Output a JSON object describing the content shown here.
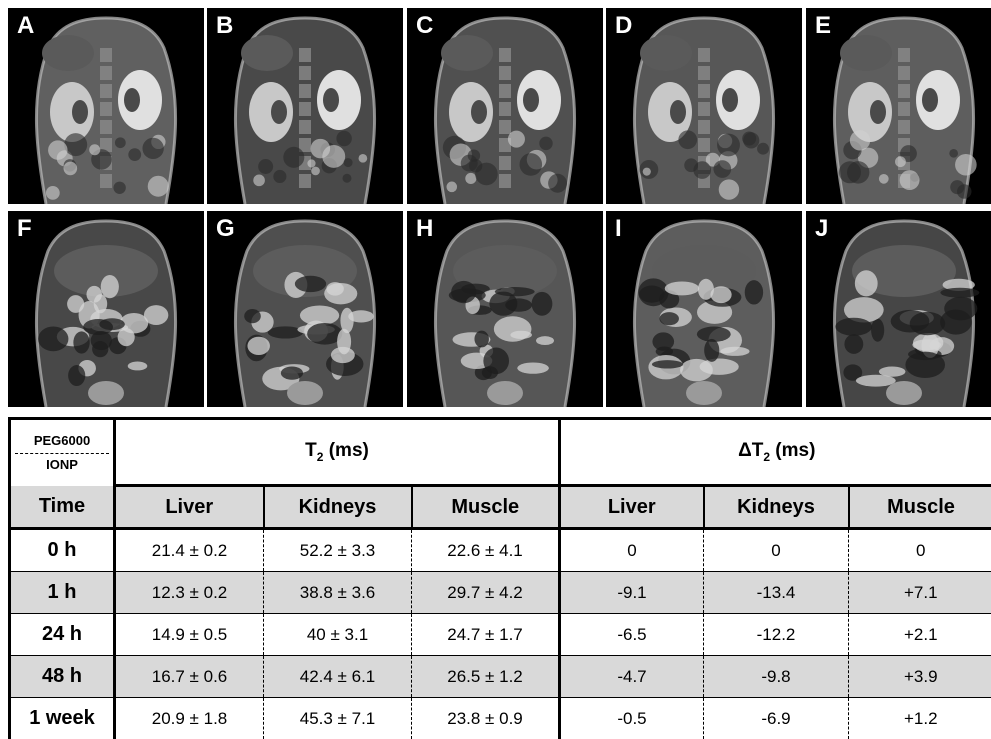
{
  "panels": [
    {
      "label": "A",
      "kind": "coronal-kidneys"
    },
    {
      "label": "B",
      "kind": "coronal-kidneys"
    },
    {
      "label": "C",
      "kind": "coronal-kidneys"
    },
    {
      "label": "D",
      "kind": "coronal-kidneys"
    },
    {
      "label": "E",
      "kind": "coronal-kidneys"
    },
    {
      "label": "F",
      "kind": "coronal-liver"
    },
    {
      "label": "G",
      "kind": "coronal-liver"
    },
    {
      "label": "H",
      "kind": "coronal-liver"
    },
    {
      "label": "I",
      "kind": "coronal-liver"
    },
    {
      "label": "J",
      "kind": "coronal-liver"
    }
  ],
  "table": {
    "sample_line1": "PEG6000",
    "sample_line2": "IONP",
    "group_t2": "T",
    "group_t2_sub": "2",
    "group_t2_unit": " (ms)",
    "group_dt2": "ΔT",
    "group_dt2_sub": "2",
    "group_dt2_unit": " (ms)",
    "time_header": "Time",
    "columns": [
      "Liver",
      "Kidneys",
      "Muscle",
      "Liver",
      "Kidneys",
      "Muscle"
    ],
    "rows": [
      {
        "time": "0 h",
        "values": [
          "21.4 ± 0.2",
          "52.2 ± 3.3",
          "22.6 ± 4.1",
          "0",
          "0",
          "0"
        ]
      },
      {
        "time": "1 h",
        "values": [
          "12.3 ± 0.2",
          "38.8 ± 3.6",
          "29.7 ± 4.2",
          "-9.1",
          "-13.4",
          "+7.1"
        ]
      },
      {
        "time": "24 h",
        "values": [
          "14.9 ± 0.5",
          "40 ± 3.1",
          "24.7 ± 1.7",
          "-6.5",
          "-12.2",
          "+2.1"
        ]
      },
      {
        "time": "48 h",
        "values": [
          "16.7 ± 0.6",
          "42.4 ± 6.1",
          "26.5 ± 1.2",
          "-4.7",
          "-9.8",
          "+3.9"
        ]
      },
      {
        "time": "1 week",
        "values": [
          "20.9 ± 1.8",
          "45.3 ± 7.1",
          "23.8 ± 0.9",
          "-0.5",
          "-6.9",
          "+1.2"
        ]
      }
    ]
  },
  "colors": {
    "shade": "#d9d9d9",
    "image_bg": "#000000",
    "label": "#ffffff"
  }
}
